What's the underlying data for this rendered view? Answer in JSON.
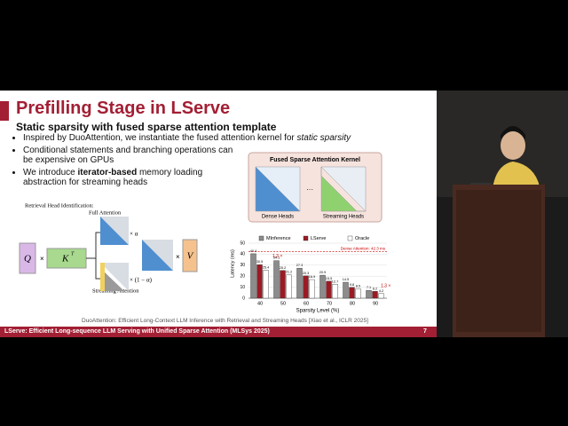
{
  "slide": {
    "title": "Prefilling Stage in LServe",
    "subtitle": "Static sparsity with fused sparse attention template",
    "bullets": [
      [
        {
          "text": "Inspired by DuoAttention, we instantiate the fused attention kernel for ",
          "style": "normal"
        },
        {
          "text": "static sparsity",
          "style": "italic"
        }
      ],
      [
        {
          "text": "Conditional statements and branching operations can be expensive on GPUs",
          "style": "normal"
        }
      ],
      [
        {
          "text": "We introduce ",
          "style": "normal"
        },
        {
          "text": "iterator-based",
          "style": "bold"
        },
        {
          "text": " memory loading abstraction for streaming heads",
          "style": "normal"
        }
      ]
    ],
    "kernel": {
      "title": "Fused Sparse Attention Kernel",
      "left": "Dense Heads",
      "right": "Streaming Heads"
    },
    "diagram": {
      "retrieval": "Retrieval Head Identification:",
      "full": "Full Attention",
      "streaming": "Streaming Attention",
      "alpha": "× α",
      "one_minus": "× (1 − α)",
      "q": "Q",
      "k": "K",
      "kt": "T",
      "v": "V"
    },
    "citation": "DuoAttention: Efficient Long-Context LLM Inference with Retrieval and Streaming Heads [Xiao et al., ICLR 2025]",
    "footer": "LServe: Efficient Long-sequence LLM Serving with Unified Sparse Attention (MLSys 2025)",
    "page": "7"
  },
  "chart_data": {
    "type": "bar",
    "categories": [
      "40",
      "50",
      "60",
      "70",
      "80",
      "90"
    ],
    "series": [
      {
        "name": "MInference",
        "color": "#8c8c8c",
        "values": [
          40.4,
          34.1,
          27.3,
          20.9,
          14.5,
          7.1
        ]
      },
      {
        "name": "LServe",
        "color": "#9b1b24",
        "values": [
          30.5,
          25.2,
          20.3,
          15.5,
          9.8,
          6.2
        ]
      },
      {
        "name": "Oracle",
        "color": "#ffffff",
        "values": [
          25.4,
          21.2,
          16.9,
          12.7,
          8.5,
          4.2
        ]
      }
    ],
    "ylim": [
      0,
      50
    ],
    "yticks": [
      0,
      10,
      20,
      30,
      40,
      50
    ],
    "y_label": "Latency (ms)",
    "x_label": "Sparsity Level (%)",
    "reference": {
      "value": 42.3,
      "label": "Dense Attention: 42.3 ms"
    },
    "annotations": [
      "1.3 ×",
      "1.3 ×"
    ],
    "grid": true
  }
}
